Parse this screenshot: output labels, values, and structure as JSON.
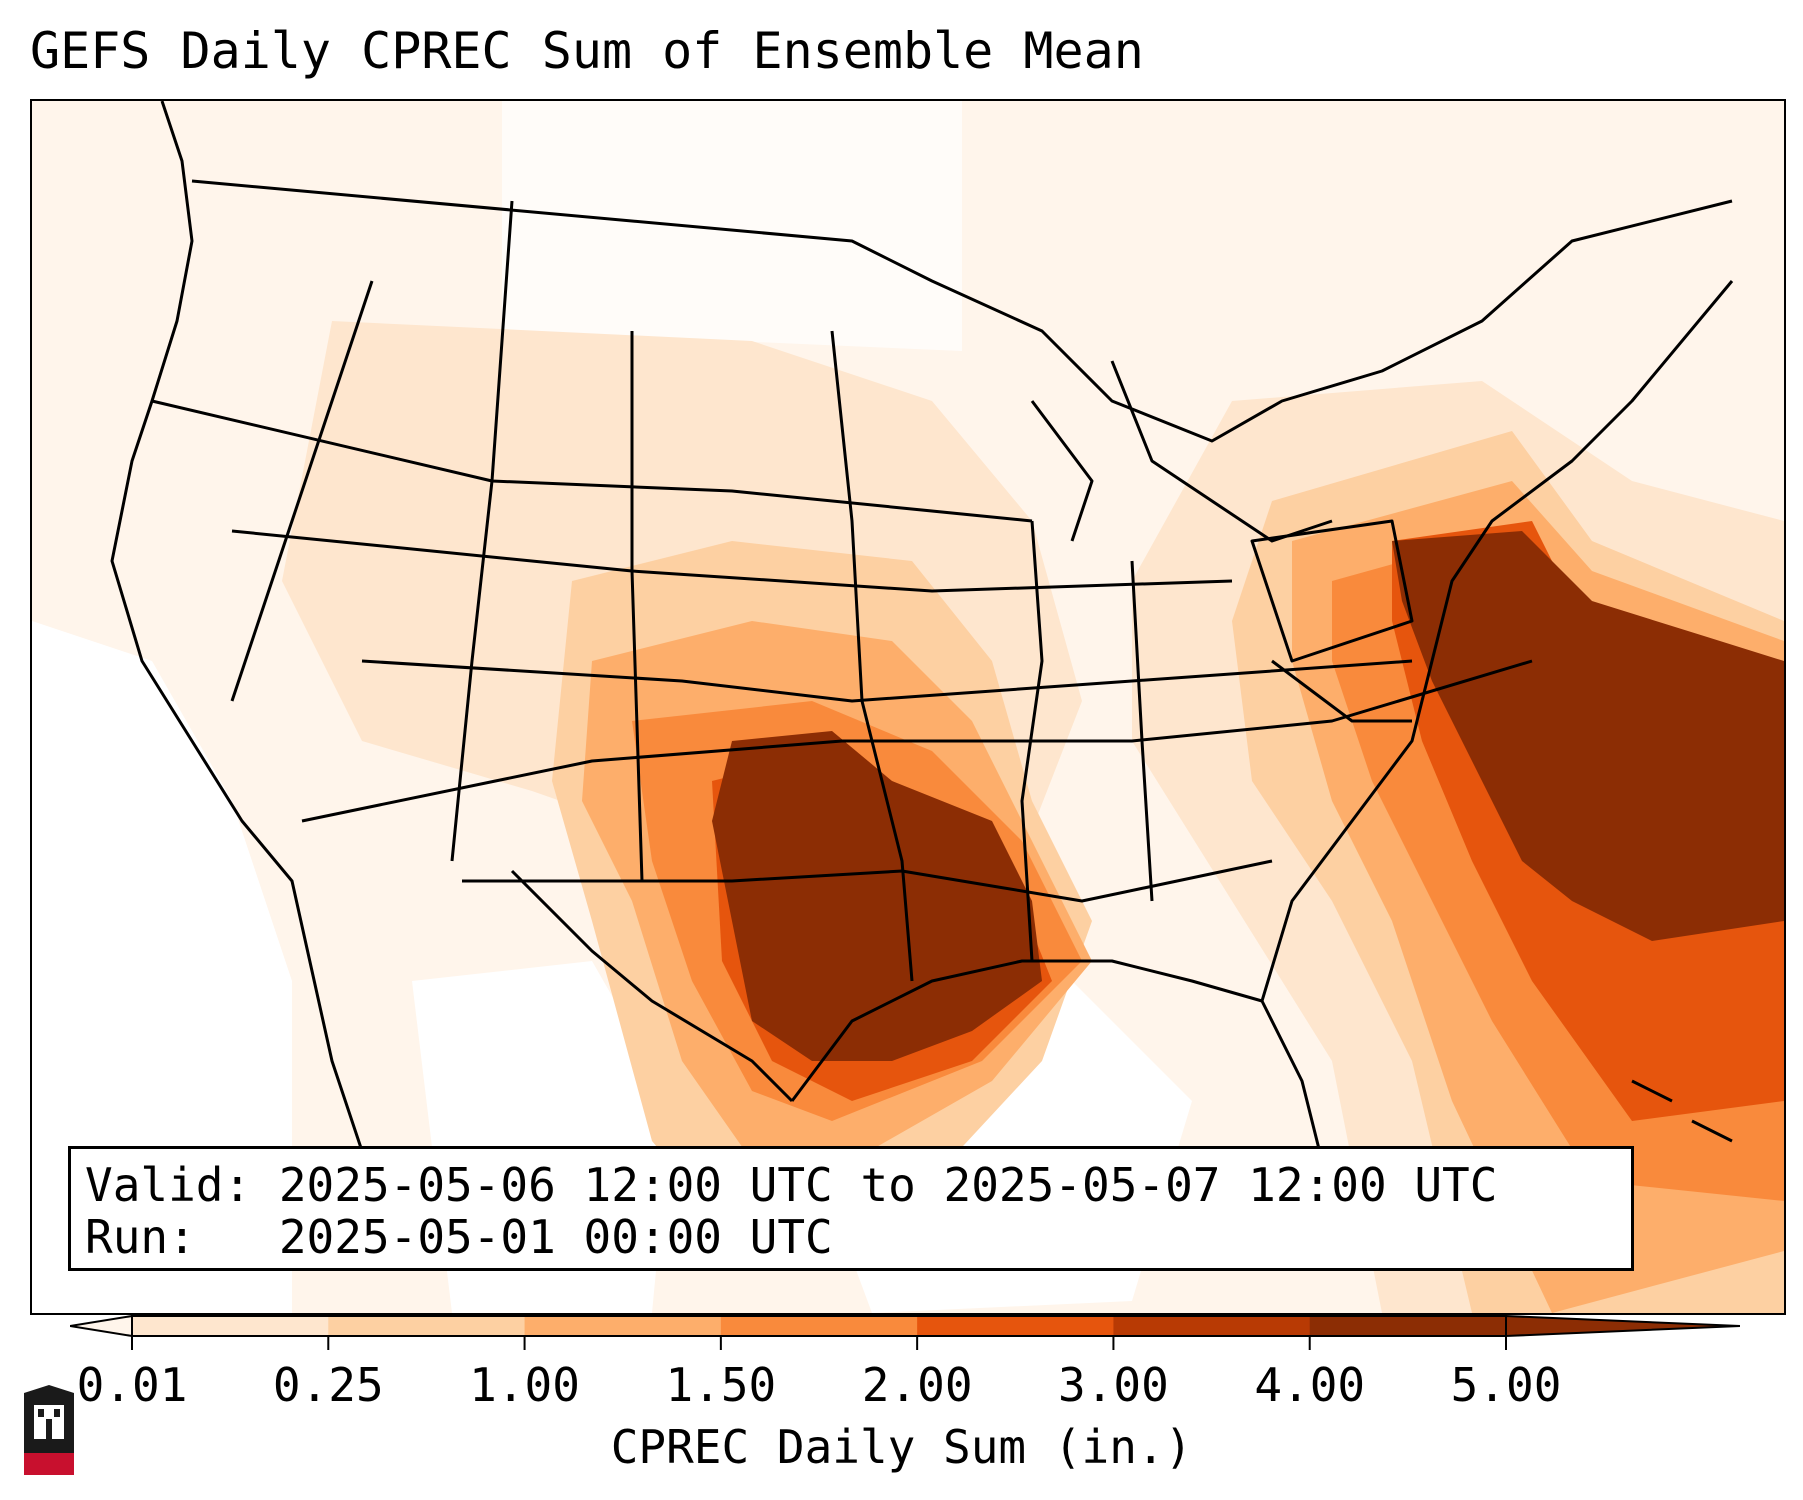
{
  "title": "GEFS Daily CPREC Sum of Ensemble Mean",
  "info": {
    "valid_line": "Valid: 2025-05-06 12:00 UTC to 2025-05-07 12:00 UTC",
    "run_line": "Run:   2025-05-01 00:00 UTC"
  },
  "colorbar": {
    "label": "CPREC Daily Sum (in.)",
    "ticks": [
      "0.01",
      "0.25",
      "1.00",
      "1.50",
      "2.00",
      "3.00",
      "4.00",
      "5.00"
    ],
    "colors": [
      "#fff5eb",
      "#fee6ce",
      "#fdd0a2",
      "#fdae6b",
      "#f98a3c",
      "#e6550d",
      "#b83a04",
      "#8c2d04"
    ],
    "extend": "both"
  },
  "logo": {
    "text": "NIU",
    "color": "#c8102e"
  }
}
